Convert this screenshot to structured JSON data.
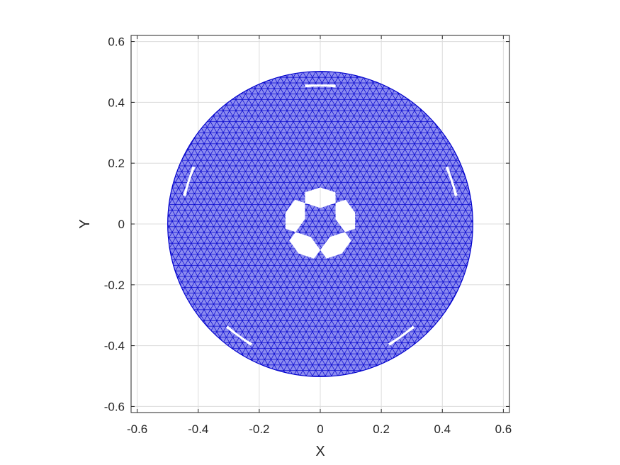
{
  "chart_data": {
    "type": "mesh",
    "xlabel": "X",
    "ylabel": "Y",
    "xlim": [
      -0.62,
      0.62
    ],
    "ylim": [
      -0.62,
      0.62
    ],
    "xticks": [
      -0.6,
      -0.4,
      -0.2,
      0,
      0.2,
      0.4,
      0.6
    ],
    "yticks": [
      -0.6,
      -0.4,
      -0.2,
      0,
      0.2,
      0.4,
      0.6
    ],
    "xtick_labels": [
      "-0.6",
      "-0.4",
      "-0.2",
      "0",
      "0.2",
      "0.4",
      "0.6"
    ],
    "ytick_labels": [
      "-0.6",
      "-0.4",
      "-0.2",
      "0",
      "0.2",
      "0.4",
      "0.6"
    ],
    "grid": true,
    "geometry": {
      "outer_radius": 0.5,
      "inner_radius": 0.45,
      "hub_radius": 0.12,
      "spoke_count": 5,
      "spoke_width": 0.1,
      "spoke_angles_deg": [
        90,
        18,
        -54,
        -126,
        162
      ]
    },
    "mesh_color": "#0000cc",
    "fill_color": "#8c8cf0"
  }
}
